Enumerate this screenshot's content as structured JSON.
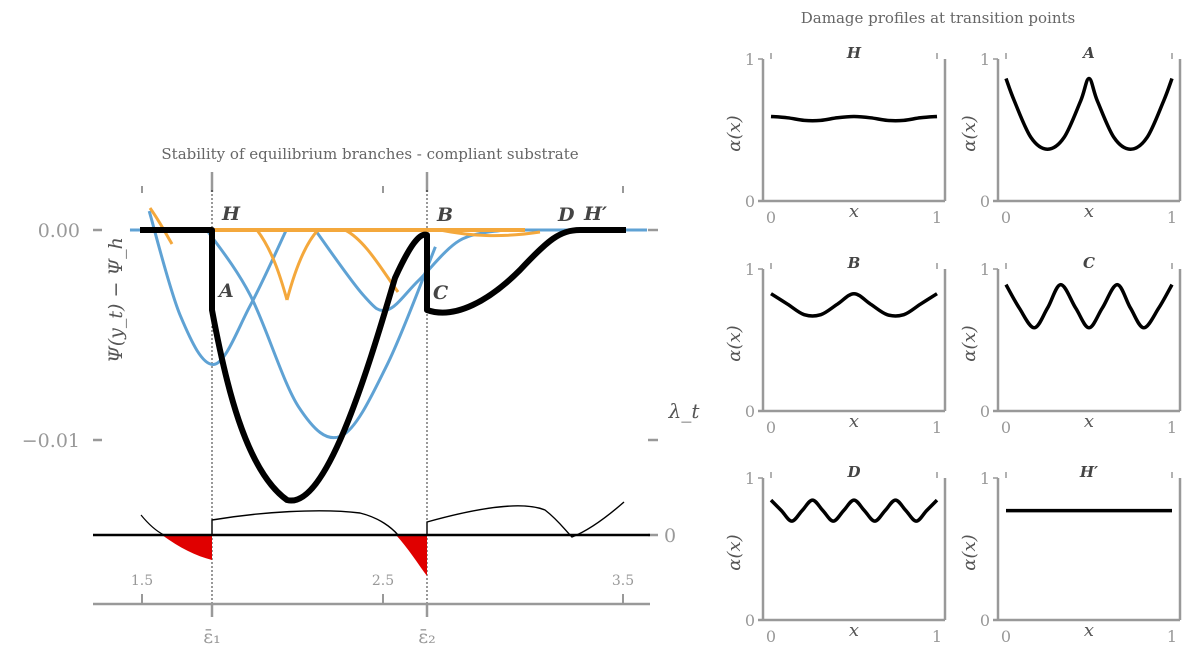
{
  "chart_data": [
    {
      "type": "line",
      "title": "Stability of equilibrium branches - compliant substrate",
      "ylabel": "Ψ(y_t) − Ψ_h",
      "y2label": "λ_t",
      "ylim": [
        -0.0145,
        0.0018
      ],
      "y_ticks": [
        "0.00",
        "−0.01"
      ],
      "y2_ticks": [
        "0"
      ],
      "x_ticks": [
        "1.5",
        "2.5",
        "3.5"
      ],
      "x_special_ticks": [
        "ε̄₁",
        "ε̄₂"
      ],
      "transition_points": [
        "H",
        "A",
        "B",
        "C",
        "D",
        "H′"
      ],
      "colors": {
        "stable": "#5fa2d4",
        "unstable": "#f4a83c",
        "path": "#000000",
        "negative": "#e00000"
      },
      "series": [
        {
          "values_x": [
            1.53,
            1.66,
            1.8,
            1.95,
            2.1
          ],
          "values_y": [
            0.0009,
            -0.0041,
            -0.0064,
            -0.0036,
            0
          ]
        },
        {
          "values_x": [
            1.77,
            1.95,
            2.15,
            2.33,
            2.52,
            2.72
          ],
          "values_y": [
            0,
            -0.0031,
            -0.0084,
            -0.0098,
            -0.0064,
            -0.0008
          ]
        },
        {
          "values_x": [
            2.22,
            2.42,
            2.52,
            2.65,
            2.82,
            3.0
          ],
          "values_y": [
            0,
            -0.0031,
            -0.0038,
            -0.0024,
            -0.0005,
            0
          ]
        },
        {
          "values_x": [
            1.45,
            3.6
          ],
          "values_y": [
            0,
            0
          ]
        },
        {
          "values_x": [
            1.49,
            1.81,
            1.81,
            1.97,
            2.15,
            2.33,
            2.5,
            2.62,
            2.72,
            2.81,
            2.81,
            2.95,
            3.15,
            3.3,
            3.42
          ],
          "values_y": [
            0,
            0,
            -0.0038,
            -0.0112,
            -0.0128,
            -0.0082,
            -0.0025,
            0,
            0.0002,
            0,
            -0.0038,
            -0.0035,
            -0.0013,
            0,
            0
          ]
        }
      ]
    },
    {
      "type": "line",
      "title": "H",
      "xlabel": "x",
      "ylabel": "α(x)",
      "xlim": [
        0,
        1
      ],
      "ylim": [
        0,
        1
      ],
      "x_ticks": [
        "0",
        "1"
      ],
      "y_ticks": [
        "0",
        "1"
      ],
      "x": [
        0,
        0.1,
        0.2,
        0.3,
        0.4,
        0.5,
        0.6,
        0.7,
        0.8,
        0.9,
        1
      ],
      "values": [
        0.63,
        0.62,
        0.6,
        0.6,
        0.62,
        0.63,
        0.62,
        0.6,
        0.6,
        0.62,
        0.63
      ]
    },
    {
      "type": "line",
      "title": "A",
      "xlabel": "x",
      "ylabel": "α(x)",
      "xlim": [
        0,
        1
      ],
      "ylim": [
        0,
        1
      ],
      "x_ticks": [
        "0",
        "1"
      ],
      "y_ticks": [
        "0",
        "1"
      ],
      "x": [
        0,
        0.05,
        0.15,
        0.25,
        0.35,
        0.45,
        0.5,
        0.55,
        0.65,
        0.75,
        0.85,
        0.95,
        1
      ],
      "values": [
        0.92,
        0.75,
        0.47,
        0.38,
        0.47,
        0.75,
        0.92,
        0.75,
        0.47,
        0.38,
        0.47,
        0.75,
        0.92
      ]
    },
    {
      "type": "line",
      "title": "B",
      "xlabel": "x",
      "ylabel": "α(x)",
      "xlim": [
        0,
        1
      ],
      "ylim": [
        0,
        1
      ],
      "x_ticks": [
        "0",
        "1"
      ],
      "y_ticks": [
        "0",
        "1"
      ],
      "x": [
        0,
        0.1,
        0.2,
        0.3,
        0.4,
        0.5,
        0.6,
        0.7,
        0.8,
        0.9,
        1
      ],
      "values": [
        0.88,
        0.8,
        0.72,
        0.72,
        0.8,
        0.88,
        0.8,
        0.72,
        0.72,
        0.8,
        0.88
      ]
    },
    {
      "type": "line",
      "title": "C",
      "xlabel": "x",
      "ylabel": "α(x)",
      "xlim": [
        0,
        1
      ],
      "ylim": [
        0,
        1
      ],
      "x_ticks": [
        "0",
        "1"
      ],
      "y_ticks": [
        "0",
        "1"
      ],
      "x": [
        0,
        0.08,
        0.17,
        0.25,
        0.33,
        0.42,
        0.5,
        0.58,
        0.67,
        0.75,
        0.83,
        0.92,
        1
      ],
      "values": [
        0.95,
        0.77,
        0.62,
        0.77,
        0.95,
        0.77,
        0.62,
        0.77,
        0.95,
        0.77,
        0.62,
        0.77,
        0.95
      ]
    },
    {
      "type": "line",
      "title": "D",
      "xlabel": "x",
      "ylabel": "α(x)",
      "xlim": [
        0,
        1
      ],
      "ylim": [
        0,
        1
      ],
      "x_ticks": [
        "0",
        "1"
      ],
      "y_ticks": [
        "0",
        "1"
      ],
      "x": [
        0,
        0.0625,
        0.125,
        0.1875,
        0.25,
        0.3125,
        0.375,
        0.4375,
        0.5,
        0.5625,
        0.625,
        0.6875,
        0.75,
        0.8125,
        0.875,
        0.9375,
        1
      ],
      "values": [
        0.9,
        0.82,
        0.74,
        0.82,
        0.9,
        0.82,
        0.74,
        0.82,
        0.9,
        0.82,
        0.74,
        0.82,
        0.9,
        0.82,
        0.74,
        0.82,
        0.9
      ]
    },
    {
      "type": "line",
      "title": "H′",
      "xlabel": "x",
      "ylabel": "α(x)",
      "xlim": [
        0,
        1
      ],
      "ylim": [
        0,
        1
      ],
      "x_ticks": [
        "0",
        "1"
      ],
      "y_ticks": [
        "0",
        "1"
      ],
      "x": [
        0,
        0.25,
        0.5,
        0.75,
        1
      ],
      "values": [
        0.82,
        0.82,
        0.82,
        0.82,
        0.82
      ]
    }
  ],
  "suptitle": "Damage profiles at transition points"
}
